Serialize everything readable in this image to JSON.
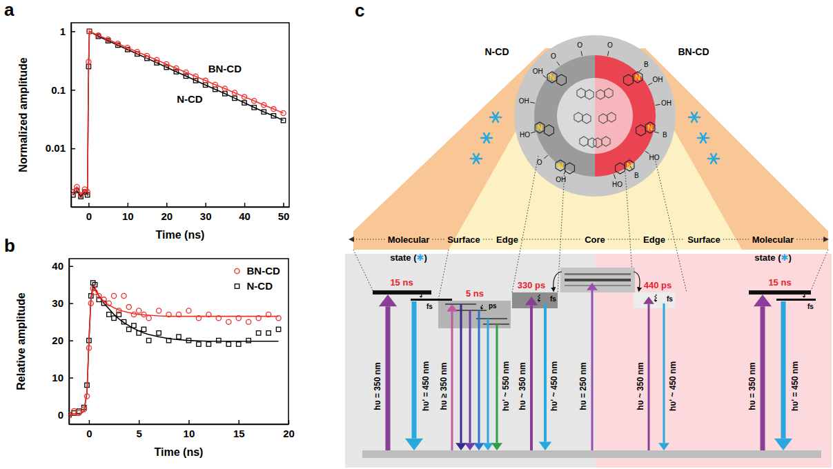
{
  "chart_data": [
    {
      "type": "line",
      "panel_label": "a",
      "x_label": "Time (ns)",
      "y_label": "Normalized amplitude",
      "log": "y",
      "xlim": [
        -4.5,
        51.5
      ],
      "ylim": [
        0.001,
        1.4
      ],
      "xticks": [
        0,
        10,
        20,
        30,
        40,
        50
      ],
      "yticks": [
        0.01,
        0.1,
        1
      ],
      "x": [
        -4,
        -3,
        -2,
        -1,
        -0.3,
        0,
        0.2,
        2.5,
        5,
        7.5,
        10,
        12.5,
        15,
        17.5,
        20,
        22.5,
        25,
        27.5,
        30,
        32.5,
        35,
        37.5,
        40,
        42.5,
        45,
        47.5,
        50
      ],
      "series": [
        {
          "name": "BN-CD",
          "color": "#f0302a",
          "marker": "circle",
          "values": [
            0.0018,
            0.0022,
            0.0016,
            0.002,
            0.0018,
            0.3,
            1,
            0.851,
            0.724,
            0.616,
            0.525,
            0.446,
            0.38,
            0.323,
            0.275,
            0.234,
            0.199,
            0.17,
            0.144,
            0.123,
            0.105,
            0.089,
            0.076,
            0.065,
            0.055,
            0.047,
            0.04
          ]
        },
        {
          "name": "N-CD",
          "color": "#000000",
          "marker": "square",
          "values": [
            0.0016,
            0.0019,
            0.0015,
            0.0018,
            0.0016,
            0.25,
            1,
            0.82,
            0.69,
            0.58,
            0.488,
            0.41,
            0.345,
            0.29,
            0.243,
            0.204,
            0.172,
            0.144,
            0.121,
            0.102,
            0.086,
            0.072,
            0.06,
            0.05,
            0.042,
            0.036,
            0.03
          ]
        }
      ]
    },
    {
      "type": "scatter",
      "panel_label": "b",
      "x_label": "Time (ns)",
      "y_label": "Relative amplitude",
      "legend": "top-right",
      "xlim": [
        -2,
        20
      ],
      "ylim": [
        -2.5,
        42
      ],
      "xticks": [
        0,
        5,
        10,
        15,
        20
      ],
      "yticks": [
        0,
        10,
        20,
        30,
        40
      ],
      "x": [
        -2,
        -1.5,
        -1,
        -0.5,
        -0.2,
        0,
        0.2,
        0.4,
        0.6,
        1,
        1.5,
        2,
        2.5,
        3,
        3.5,
        4,
        4.5,
        5,
        5.5,
        6,
        7,
        8,
        9,
        10,
        11,
        12,
        13,
        14,
        15,
        16,
        17,
        18,
        19
      ],
      "series": [
        {
          "name": "BN-CD",
          "color": "#f0302a",
          "marker": "circle",
          "values": [
            0,
            1,
            0.5,
            1.5,
            5,
            18,
            30,
            34,
            33,
            32,
            31,
            30,
            32,
            28,
            32,
            29,
            27,
            28,
            27,
            26,
            28,
            27,
            27,
            28,
            26,
            27,
            26,
            25,
            26,
            25,
            26,
            27,
            26
          ],
          "fit_values": [
            0,
            0,
            0,
            1,
            6,
            20,
            31,
            34,
            33.5,
            32,
            30.5,
            29.5,
            28.8,
            28.2,
            27.8,
            27.5,
            27.2,
            27,
            26.9,
            26.8,
            26.6,
            26.5,
            26.5,
            26.5,
            26.5,
            26.5,
            26.5,
            26.5,
            26.5,
            26.5,
            26.5,
            26.5,
            26.5
          ]
        },
        {
          "name": "N-CD",
          "color": "#000000",
          "marker": "square",
          "values": [
            0,
            0.5,
            1,
            2,
            8,
            20,
            32,
            35.5,
            35,
            31,
            30,
            27,
            26,
            27,
            25,
            23,
            24,
            22,
            23,
            20,
            22,
            20,
            21,
            20,
            19,
            19,
            20,
            19,
            19,
            20,
            22,
            22,
            23
          ],
          "fit_values": [
            0,
            0,
            0,
            1,
            6,
            20,
            31.5,
            34.5,
            34,
            32,
            30,
            28.5,
            27,
            25.8,
            24.8,
            24,
            23.2,
            22.6,
            22,
            21.6,
            21,
            20.5,
            20.2,
            20,
            19.9,
            19.8,
            19.8,
            19.8,
            19.8,
            19.8,
            19.8,
            19.8,
            19.8
          ]
        }
      ]
    }
  ],
  "diagram": {
    "panel_label": "c",
    "particle_labels": [
      "N-CD",
      "BN-CD"
    ],
    "region_labels": [
      "Molecular",
      "Surface",
      "Edge",
      "Core",
      "Edge",
      "Surface",
      "Molecular"
    ],
    "state_label": "state (✱)",
    "lifetimes": [
      "15 ns",
      "5 ns",
      "330 ps",
      "440 ps",
      "15 ns"
    ],
    "relaxation_labels": [
      "fs",
      "ps",
      "fs",
      "fs",
      "fs"
    ],
    "transitions": [
      "hυ = 350 nm",
      "hυ' = 450 nm",
      "hυ ≥ 350 nm",
      "hυ' ~ 550 nm",
      "hυ ~ 350 nm",
      "hυ' ~ 450 nm",
      "hυ = 250 nm",
      "hυ ~ 350 nm",
      "hυ' ~ 450 nm",
      "hυ = 350 nm",
      "hυ' = 450 nm"
    ],
    "atom_labels": [
      "N",
      "N",
      "N",
      "N",
      "N",
      "N"
    ],
    "surface_groups_left": [
      "O",
      "O",
      "OH",
      "OH",
      "HO",
      "O",
      "OH"
    ],
    "surface_groups_right": [
      "O",
      "B",
      "OH",
      "OH",
      "B",
      "HO",
      "B",
      "HO"
    ]
  }
}
